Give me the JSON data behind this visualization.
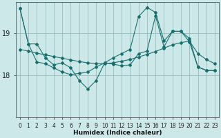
{
  "xlabel": "Humidex (Indice chaleur)",
  "background_color": "#cce8e8",
  "grid_color": "#99bbbb",
  "line_color": "#1a6e6e",
  "x_ticks": [
    0,
    1,
    2,
    3,
    4,
    5,
    6,
    7,
    8,
    9,
    10,
    11,
    12,
    13,
    14,
    15,
    16,
    17,
    18,
    19,
    20,
    21,
    22,
    23
  ],
  "y_ticks": [
    18,
    19
  ],
  "xlim": [
    -0.5,
    23.5
  ],
  "ylim": [
    17.0,
    19.75
  ],
  "series1_y": [
    19.6,
    18.75,
    18.75,
    18.42,
    18.25,
    18.3,
    18.18,
    17.88,
    17.68,
    17.88,
    18.3,
    18.27,
    18.23,
    18.25,
    18.52,
    18.58,
    19.42,
    18.68,
    19.05,
    19.05,
    18.88,
    18.2,
    18.12,
    18.12
  ],
  "series2_y": [
    18.62,
    18.58,
    18.53,
    18.49,
    18.45,
    18.41,
    18.37,
    18.33,
    18.3,
    18.28,
    18.28,
    18.3,
    18.34,
    18.38,
    18.44,
    18.5,
    18.57,
    18.65,
    18.73,
    18.78,
    18.82,
    18.52,
    18.38,
    18.28
  ],
  "series3_y": [
    19.6,
    18.75,
    18.32,
    18.28,
    18.18,
    18.08,
    18.02,
    18.05,
    18.08,
    18.2,
    18.3,
    18.42,
    18.52,
    18.62,
    19.4,
    19.62,
    19.5,
    18.82,
    19.05,
    19.05,
    18.8,
    18.2,
    18.12,
    18.12
  ]
}
